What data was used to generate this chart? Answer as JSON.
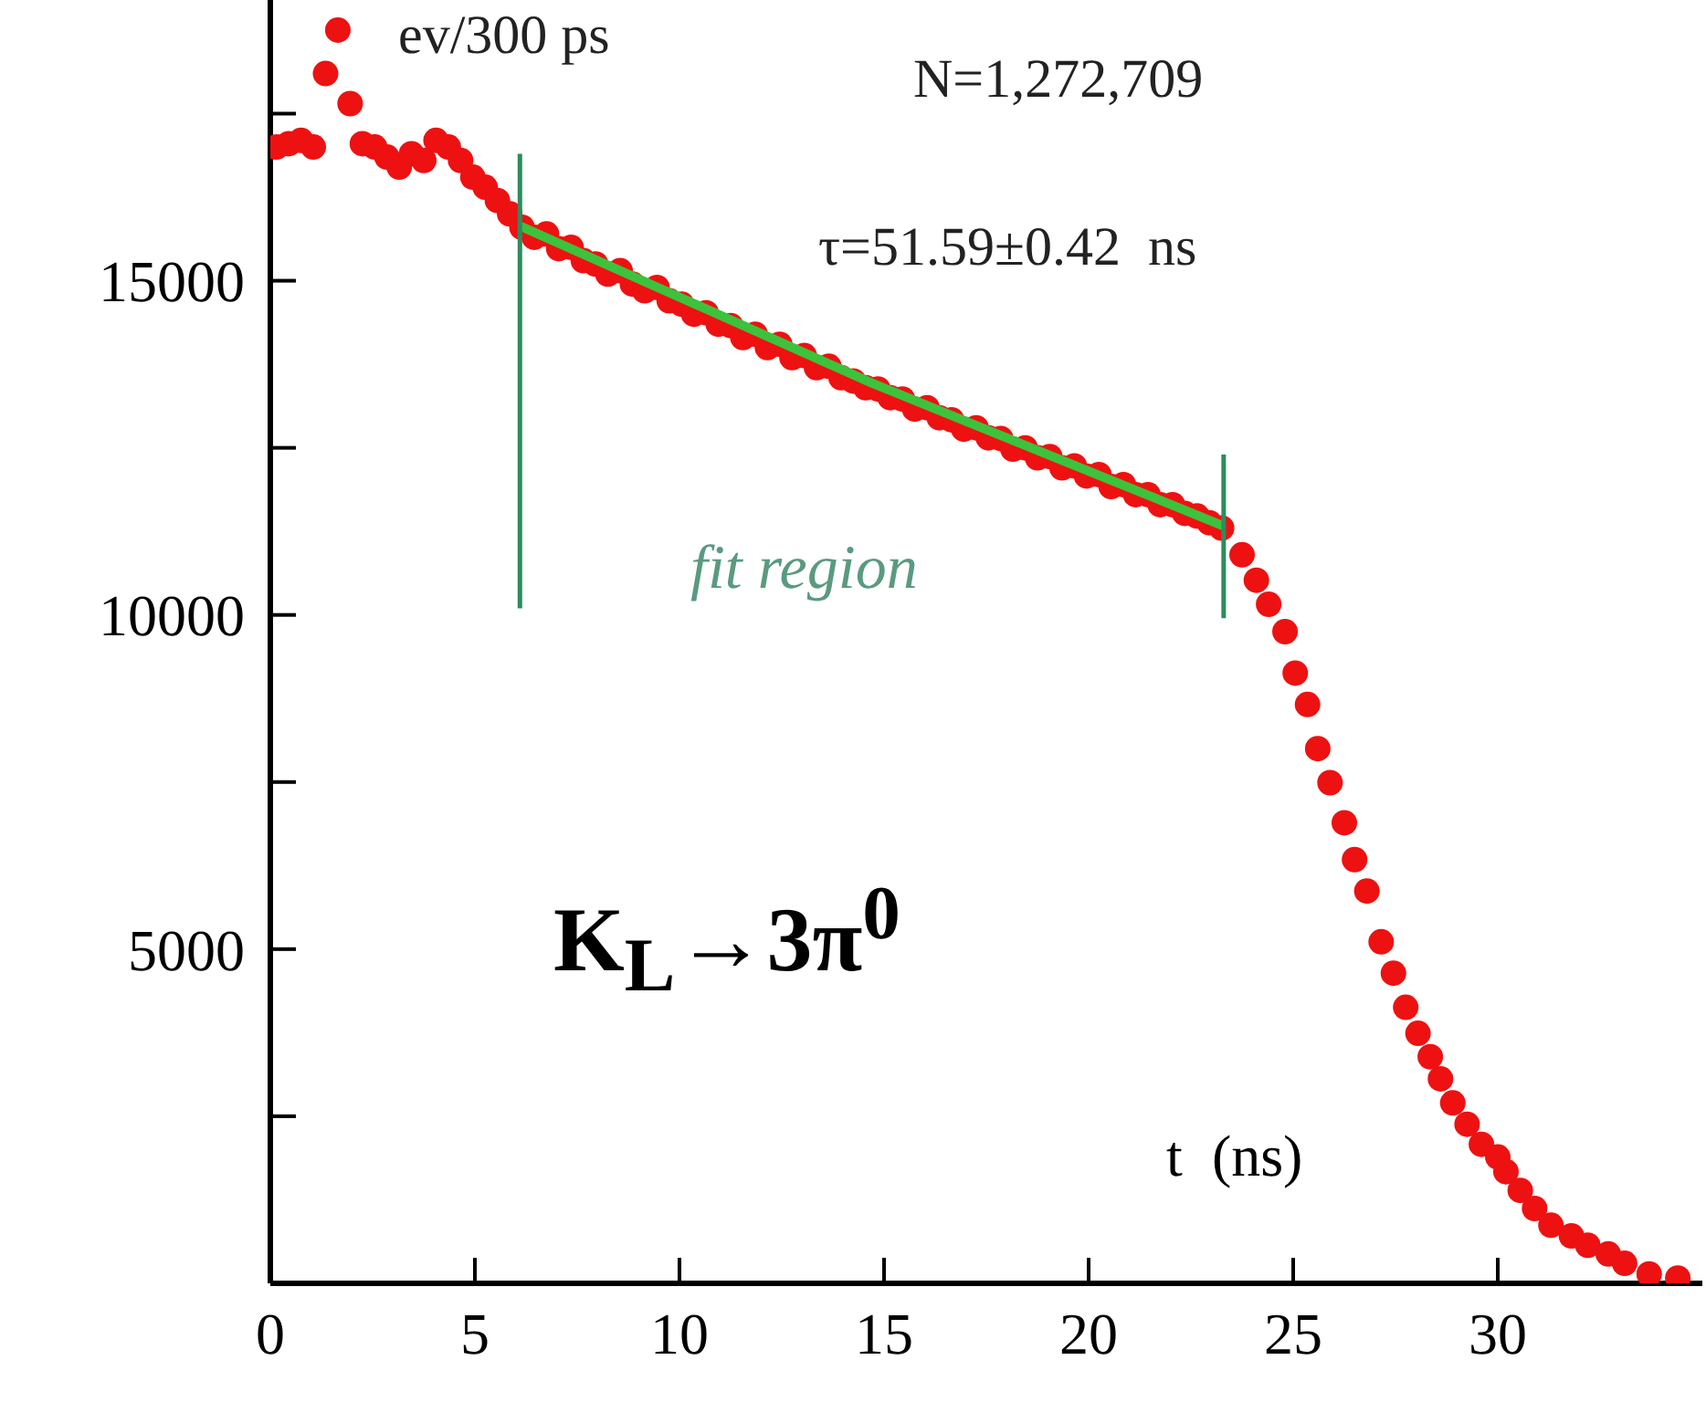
{
  "chart_data": {
    "type": "scatter",
    "xlabel": "t  (ns)",
    "xlim": [
      0,
      35
    ],
    "ylim": [
      0,
      19200
    ],
    "xticks": [
      0,
      5,
      10,
      15,
      20,
      25,
      30
    ],
    "yticks": [
      {
        "value": 2500,
        "label": null
      },
      5000,
      {
        "value": 7500,
        "label": null
      },
      10000,
      {
        "value": 12500,
        "label": null
      },
      15000,
      {
        "value": 17500,
        "label": null
      }
    ],
    "annotations": [
      "ev/300 ps",
      "N=1,272,709",
      "τ=51.59±0.42  ns",
      "fit region",
      "K$_{L}$→3π$^{0}$"
    ],
    "series": [
      {
        "marker": "circle",
        "color": "#ee1111",
        "x": [
          0.15,
          0.45,
          0.75,
          1.05,
          1.35,
          1.65,
          1.95,
          2.25,
          2.55,
          2.85,
          3.15,
          3.45,
          3.75,
          4.05,
          4.35,
          4.65,
          4.95,
          5.25,
          5.55,
          5.85,
          6.15,
          6.45,
          6.75,
          7.05,
          7.35,
          7.65,
          7.95,
          8.25,
          8.55,
          8.85,
          9.15,
          9.45,
          9.75,
          10.05,
          10.35,
          10.65,
          10.95,
          11.25,
          11.55,
          11.85,
          12.15,
          12.45,
          12.75,
          13.05,
          13.35,
          13.65,
          13.95,
          14.25,
          14.55,
          14.85,
          15.15,
          15.45,
          15.75,
          16.05,
          16.35,
          16.65,
          16.95,
          17.25,
          17.55,
          17.85,
          18.15,
          18.45,
          18.75,
          19.05,
          19.35,
          19.65,
          19.95,
          20.25,
          20.55,
          20.85,
          21.15,
          21.45,
          21.75,
          22.05,
          22.35,
          22.65,
          22.95,
          23.25,
          23.75,
          24.1,
          24.4,
          24.8,
          25.05,
          25.35,
          25.6,
          25.9,
          26.25,
          26.5,
          26.8,
          27.15,
          27.45,
          27.75,
          28.05,
          28.35,
          28.6,
          28.9,
          29.25,
          29.6,
          30.0,
          30.2,
          30.55,
          30.9,
          31.3,
          31.8,
          32.2,
          32.7,
          33.1,
          33.7,
          34.4
        ],
        "values": [
          17000,
          17050,
          17100,
          17000,
          18100,
          18750,
          17650,
          17050,
          17000,
          16850,
          16700,
          16900,
          16800,
          17100,
          17000,
          16800,
          16550,
          16400,
          16200,
          16000,
          15800,
          15650,
          15700,
          15480,
          15500,
          15300,
          15250,
          15100,
          15150,
          14950,
          14850,
          14900,
          14700,
          14650,
          14500,
          14520,
          14350,
          14330,
          14150,
          14200,
          14000,
          14050,
          13850,
          13880,
          13700,
          13720,
          13550,
          13500,
          13400,
          13380,
          13250,
          13230,
          13080,
          13100,
          12950,
          12920,
          12780,
          12800,
          12650,
          12640,
          12480,
          12500,
          12350,
          12370,
          12200,
          12230,
          12080,
          12100,
          11920,
          11950,
          11800,
          11800,
          11650,
          11650,
          11520,
          11480,
          11380,
          11300,
          10900,
          10520,
          10160,
          9750,
          9130,
          8660,
          8000,
          7490,
          6890,
          6340,
          5870,
          5110,
          4640,
          4130,
          3740,
          3390,
          3060,
          2700,
          2380,
          2080,
          1890,
          1670,
          1390,
          1120,
          870,
          710,
          570,
          440,
          300,
          140,
          80
        ]
      },
      {
        "type": "line",
        "color": "#3cc23c",
        "x": [
          6.1,
          14.7,
          23.3
        ],
        "values": [
          15820,
          13470,
          11330
        ]
      },
      {
        "type": "line",
        "color": "#2e8b5e",
        "x": [
          6.1,
          6.1
        ],
        "values": [
          10100,
          16900
        ]
      },
      {
        "type": "line",
        "color": "#2e8b5e",
        "x": [
          23.3,
          23.3
        ],
        "values": [
          9950,
          12400
        ]
      }
    ]
  }
}
